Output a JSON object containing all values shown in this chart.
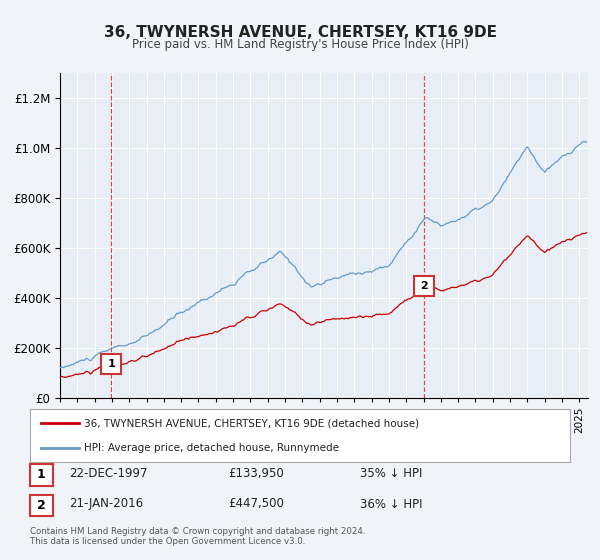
{
  "title": "36, TWYNERSH AVENUE, CHERTSEY, KT16 9DE",
  "subtitle": "Price paid vs. HM Land Registry's House Price Index (HPI)",
  "bg_color": "#f0f4f8",
  "plot_bg_color": "#e8eef5",
  "grid_color": "#ffffff",
  "red_line_color": "#cc0000",
  "blue_line_color": "#6699cc",
  "purchase1_date": 1997.97,
  "purchase1_price": 133950,
  "purchase2_date": 2016.05,
  "purchase2_price": 447500,
  "ylim_min": 0,
  "ylim_max": 1300000,
  "xlim_min": 1995,
  "xlim_max": 2025.5,
  "legend_line1": "36, TWYNERSH AVENUE, CHERTSEY, KT16 9DE (detached house)",
  "legend_line2": "HPI: Average price, detached house, Runnymede",
  "table_row1_date": "22-DEC-1997",
  "table_row1_price": "£133,950",
  "table_row1_hpi": "35% ↓ HPI",
  "table_row2_date": "21-JAN-2016",
  "table_row2_price": "£447,500",
  "table_row2_hpi": "36% ↓ HPI",
  "footer": "Contains HM Land Registry data © Crown copyright and database right 2024.\nThis data is licensed under the Open Government Licence v3.0."
}
